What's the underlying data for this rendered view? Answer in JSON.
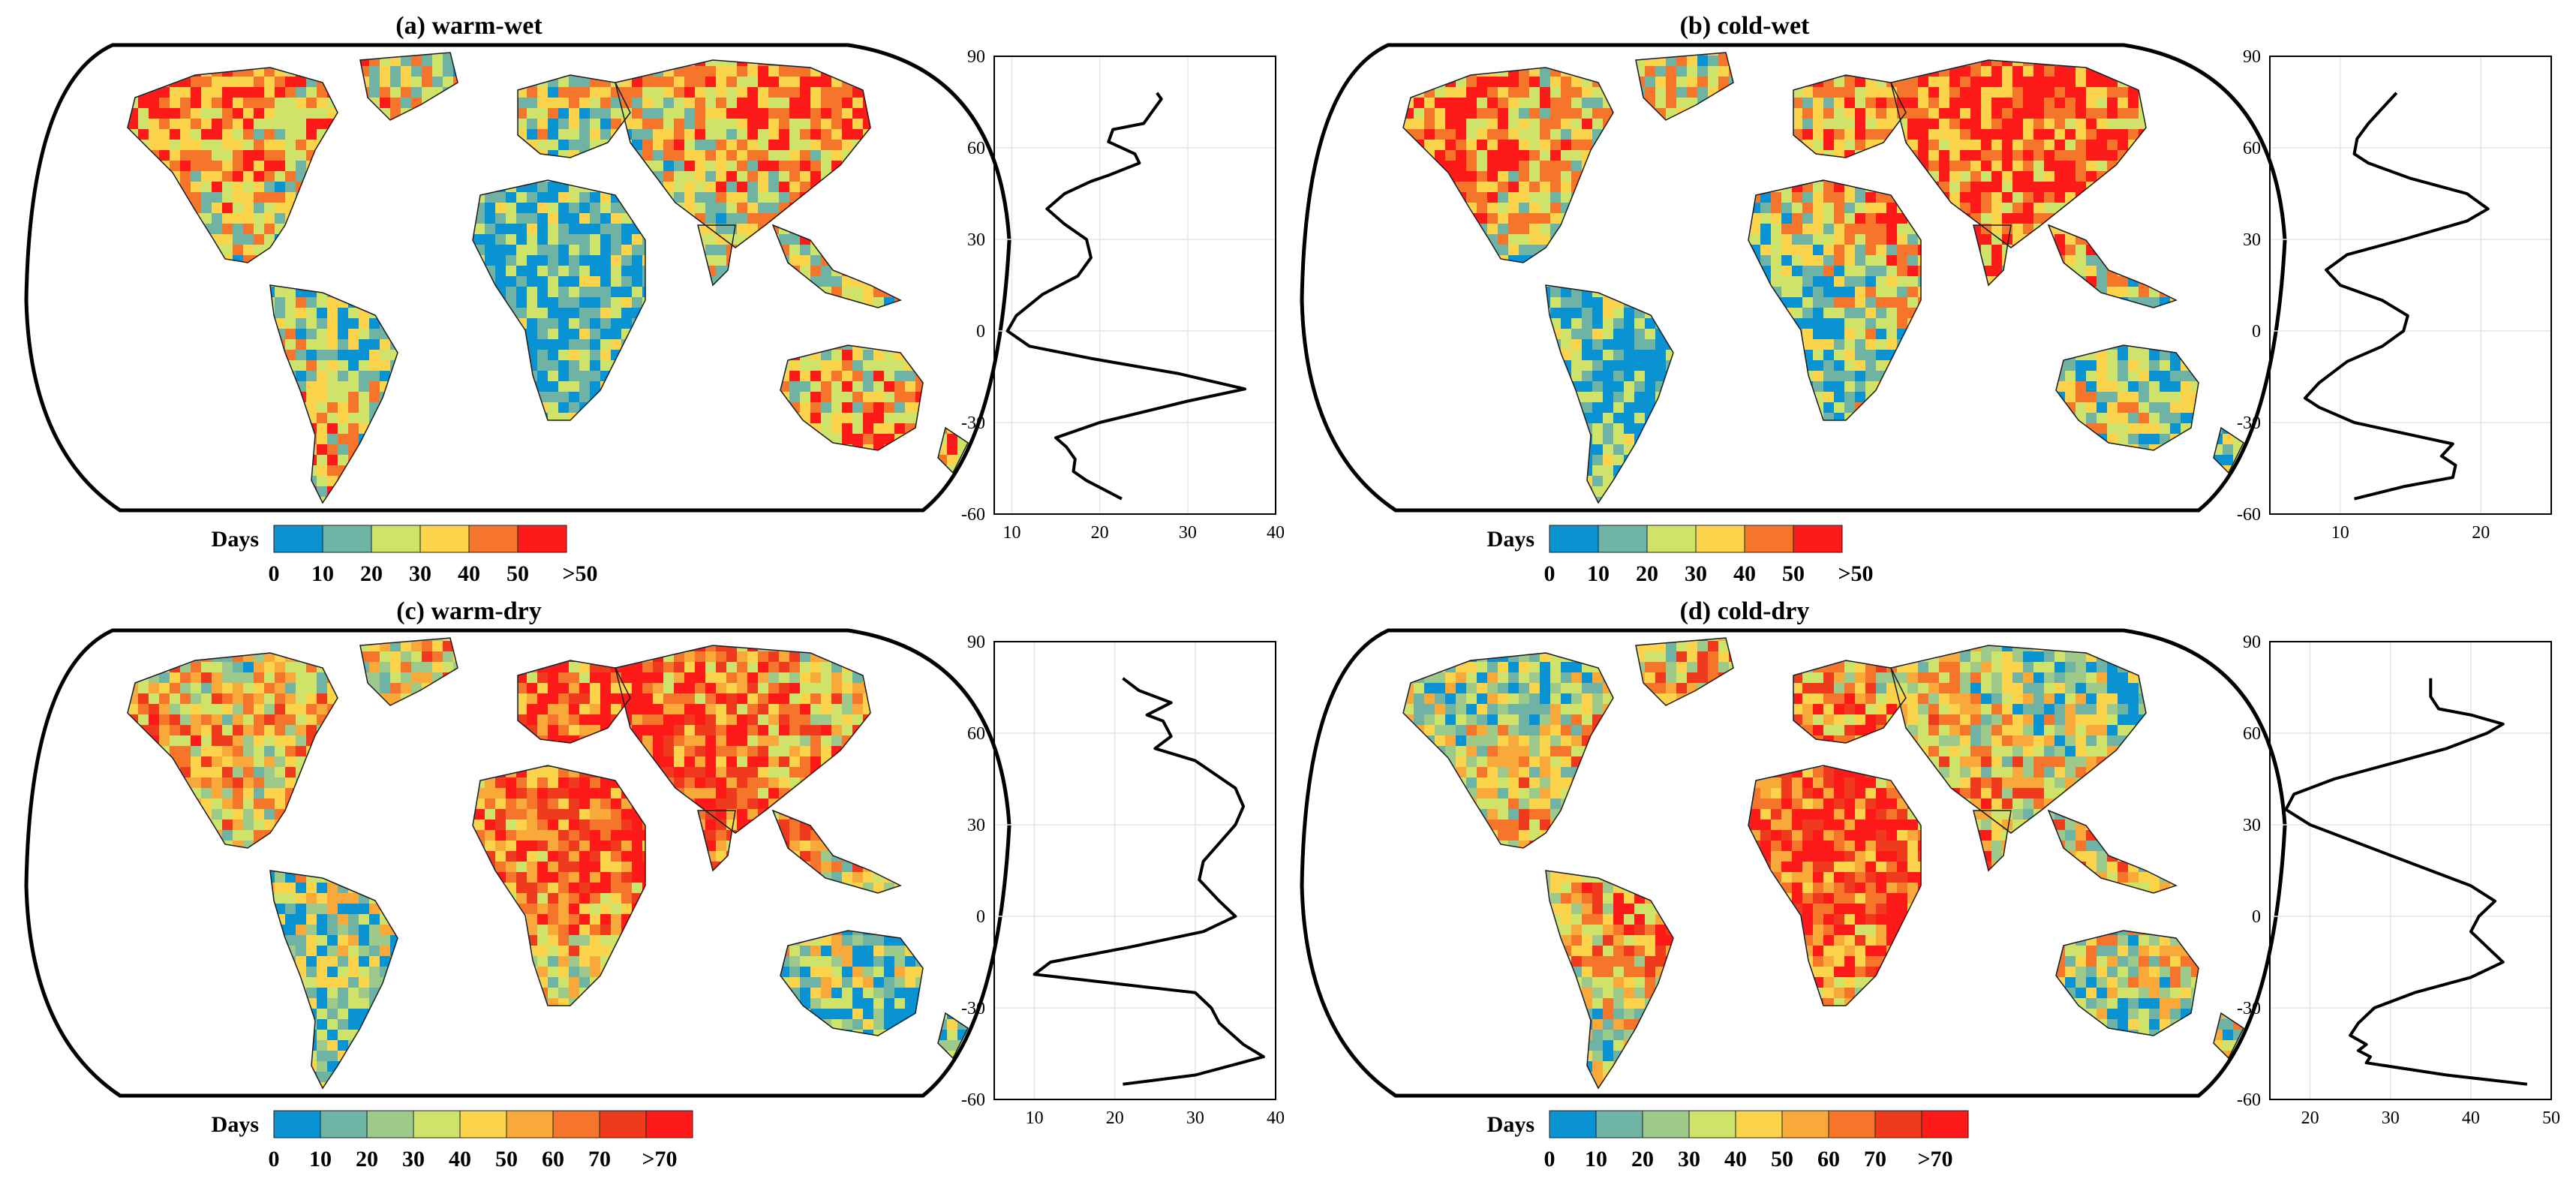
{
  "figure": {
    "colors": {
      "c0": "#0a93d3",
      "c1": "#6fb3a5",
      "c2": "#9dc98a",
      "c3": "#cfe26a",
      "c4": "#fbd44b",
      "c5": "#f9a93a",
      "c6": "#f5762a",
      "c7": "#ef3a1e",
      "c8": "#ff1a1a",
      "ocean": "#ffffff",
      "land_stroke": "#1a1a1a",
      "line": "#000000",
      "grid": "#e6e6e6"
    }
  },
  "chart_data": [
    {
      "id": "a",
      "type": "line",
      "title": "(a) warm-wet",
      "map_palette": [
        "#0a93d3",
        "#6fb3a5",
        "#cfe26a",
        "#fbd44b",
        "#f5762a",
        "#ff1a1a"
      ],
      "legend": {
        "label": "Days",
        "ticks": [
          "0",
          "10",
          "20",
          "30",
          "40",
          "50",
          ">50"
        ],
        "colors": [
          "#0a93d3",
          "#6fb3a5",
          "#cfe26a",
          "#fbd44b",
          "#f5762a",
          "#ff1a1a"
        ]
      },
      "profile": {
        "xlim": [
          8,
          40
        ],
        "ylim": [
          -60,
          90
        ],
        "xticks": [
          "10",
          "20",
          "30",
          "40"
        ],
        "xtick_values": [
          10,
          20,
          30,
          40
        ],
        "yticks": [
          "90",
          "60",
          "30",
          "0",
          "-30",
          "-60"
        ],
        "ytick_values": [
          90,
          60,
          30,
          0,
          -30,
          -60
        ],
        "x": [
          22.5,
          20.5,
          18.5,
          17,
          17.2,
          16.2,
          15,
          20,
          30,
          36.5,
          29,
          19,
          12,
          9.5,
          10.5,
          13.5,
          17.5,
          19,
          18.5,
          16,
          14,
          16,
          19,
          21,
          24.5,
          24,
          21,
          21.5,
          25,
          26,
          27,
          26.5
        ],
        "y": [
          -55,
          -52,
          -49,
          -46,
          -42,
          -38,
          -35,
          -30,
          -23,
          -19,
          -14,
          -9,
          -5,
          0,
          5,
          12,
          18,
          24,
          30,
          35,
          40,
          45,
          49,
          51,
          55,
          58,
          62,
          66,
          68,
          72,
          76,
          78
        ]
      }
    },
    {
      "id": "b",
      "type": "line",
      "title": "(b) cold-wet",
      "map_palette": [
        "#0a93d3",
        "#6fb3a5",
        "#cfe26a",
        "#fbd44b",
        "#f5762a",
        "#ff1a1a"
      ],
      "legend": {
        "label": "Days",
        "ticks": [
          "0",
          "10",
          "20",
          "30",
          "40",
          "50",
          ">50"
        ],
        "colors": [
          "#0a93d3",
          "#6fb3a5",
          "#cfe26a",
          "#fbd44b",
          "#f5762a",
          "#ff1a1a"
        ]
      },
      "profile": {
        "xlim": [
          5,
          25
        ],
        "ylim": [
          -60,
          90
        ],
        "xticks": [
          "10",
          "20"
        ],
        "xtick_values": [
          10,
          20
        ],
        "yticks": [
          "90",
          "60",
          "30",
          "0",
          "-30",
          "-60"
        ],
        "ytick_values": [
          90,
          60,
          30,
          0,
          -30,
          -60
        ],
        "x": [
          11,
          14.5,
          18,
          18.2,
          17.2,
          18,
          15,
          11,
          8.5,
          7.5,
          8.5,
          10.5,
          13,
          14.5,
          14.8,
          13,
          10,
          9,
          10.5,
          14.5,
          19,
          20.5,
          19,
          15,
          12,
          11,
          11.2,
          12,
          13,
          14
        ],
        "y": [
          -55,
          -51,
          -48,
          -44,
          -41,
          -37,
          -34,
          -30,
          -25,
          -22,
          -17,
          -10,
          -5,
          0,
          5,
          10,
          15,
          20,
          25,
          30,
          36,
          40,
          45,
          50,
          55,
          58,
          63,
          68,
          73,
          78
        ]
      }
    },
    {
      "id": "c",
      "type": "line",
      "title": "(c) warm-dry",
      "map_palette": [
        "#0a93d3",
        "#6fb3a5",
        "#9dc98a",
        "#cfe26a",
        "#fbd44b",
        "#f9a93a",
        "#f5762a",
        "#ef3a1e",
        "#ff1a1a"
      ],
      "legend": {
        "label": "Days",
        "ticks": [
          "0",
          "10",
          "20",
          "30",
          "40",
          "50",
          "60",
          "70",
          ">70"
        ],
        "colors": [
          "#0a93d3",
          "#6fb3a5",
          "#9dc98a",
          "#cfe26a",
          "#fbd44b",
          "#f9a93a",
          "#f5762a",
          "#ef3a1e",
          "#ff1a1a"
        ]
      },
      "profile": {
        "xlim": [
          5,
          40
        ],
        "ylim": [
          -60,
          90
        ],
        "xticks": [
          "10",
          "20",
          "30",
          "40"
        ],
        "xtick_values": [
          10,
          20,
          30,
          40
        ],
        "yticks": [
          "90",
          "60",
          "30",
          "0",
          "-30",
          "-60"
        ],
        "ytick_values": [
          90,
          60,
          30,
          0,
          -30,
          -60
        ],
        "x": [
          21,
          30,
          38.5,
          36,
          33,
          32,
          30,
          20,
          10,
          12,
          22,
          31,
          35,
          33,
          30.5,
          31,
          33,
          35,
          36,
          35,
          30,
          25,
          27,
          26,
          24,
          27,
          23,
          21
        ],
        "y": [
          -55,
          -52,
          -46,
          -42,
          -35,
          -30,
          -25,
          -22,
          -19,
          -15,
          -10,
          -5,
          0,
          5,
          12,
          18,
          24,
          30,
          36,
          42,
          51,
          55,
          59,
          64,
          66,
          70,
          74,
          78
        ]
      }
    },
    {
      "id": "d",
      "type": "line",
      "title": "(d) cold-dry",
      "map_palette": [
        "#0a93d3",
        "#6fb3a5",
        "#9dc98a",
        "#cfe26a",
        "#fbd44b",
        "#f9a93a",
        "#f5762a",
        "#ef3a1e",
        "#ff1a1a"
      ],
      "legend": {
        "label": "Days",
        "ticks": [
          "0",
          "10",
          "20",
          "30",
          "40",
          "50",
          "60",
          "70",
          ">70"
        ],
        "colors": [
          "#0a93d3",
          "#6fb3a5",
          "#9dc98a",
          "#cfe26a",
          "#fbd44b",
          "#f9a93a",
          "#f5762a",
          "#ef3a1e",
          "#ff1a1a"
        ]
      },
      "profile": {
        "xlim": [
          15,
          50
        ],
        "ylim": [
          -60,
          90
        ],
        "xticks": [
          "20",
          "30",
          "40",
          "50"
        ],
        "xtick_values": [
          20,
          30,
          40,
          50
        ],
        "yticks": [
          "90",
          "60",
          "30",
          "0",
          "-30",
          "-60"
        ],
        "ytick_values": [
          90,
          60,
          30,
          0,
          -30,
          -60
        ],
        "x": [
          47,
          37,
          27,
          27.5,
          26,
          27,
          25,
          26,
          28,
          33,
          40,
          44,
          42,
          40,
          41,
          43,
          40,
          30,
          20,
          17,
          18,
          23,
          30,
          37,
          42,
          44,
          40,
          36,
          35,
          35
        ],
        "y": [
          -55,
          -52,
          -48,
          -46,
          -44,
          -42,
          -39,
          -35,
          -30,
          -25,
          -20,
          -15,
          -10,
          -5,
          0,
          5,
          10,
          20,
          30,
          35,
          40,
          45,
          50,
          55,
          60,
          63,
          66,
          68,
          72,
          78
        ]
      }
    }
  ]
}
